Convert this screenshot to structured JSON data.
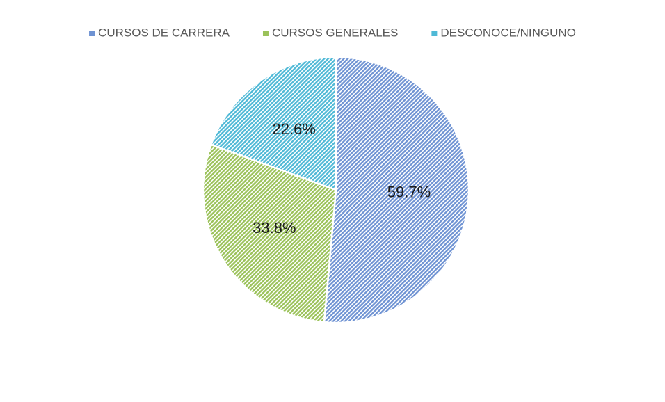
{
  "chart_data": {
    "type": "pie",
    "categories": [
      "CURSOS DE CARRERA",
      "CURSOS GENERALES",
      "DESCONOCE/NINGUNO"
    ],
    "values": [
      59.7,
      33.8,
      22.6
    ],
    "value_labels": [
      "59.7%",
      "33.8%",
      "22.6%"
    ],
    "colors": [
      "#6f93d3",
      "#9bc25a",
      "#4fb9d6"
    ],
    "legend": "top"
  }
}
